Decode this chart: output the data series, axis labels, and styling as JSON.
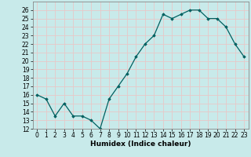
{
  "x": [
    0,
    1,
    2,
    3,
    4,
    5,
    6,
    7,
    8,
    9,
    10,
    11,
    12,
    13,
    14,
    15,
    16,
    17,
    18,
    19,
    20,
    21,
    22,
    23
  ],
  "y": [
    16,
    15.5,
    13.5,
    15,
    13.5,
    13.5,
    13,
    12,
    15.5,
    17,
    18.5,
    20.5,
    22,
    23,
    25.5,
    25,
    25.5,
    26,
    26,
    25,
    25,
    24,
    22,
    20.5
  ],
  "line_color": "#006060",
  "marker": "D",
  "marker_size": 1.8,
  "bg_color": "#c8eaea",
  "grid_color": "#e8c8c8",
  "xlabel": "Humidex (Indice chaleur)",
  "xlim": [
    -0.5,
    23.5
  ],
  "ylim": [
    12,
    27
  ],
  "yticks": [
    12,
    13,
    14,
    15,
    16,
    17,
    18,
    19,
    20,
    21,
    22,
    23,
    24,
    25,
    26
  ],
  "xticks": [
    0,
    1,
    2,
    3,
    4,
    5,
    6,
    7,
    8,
    9,
    10,
    11,
    12,
    13,
    14,
    15,
    16,
    17,
    18,
    19,
    20,
    21,
    22,
    23
  ],
  "tick_fontsize": 5.5,
  "label_fontsize": 6.5,
  "line_width": 0.9
}
